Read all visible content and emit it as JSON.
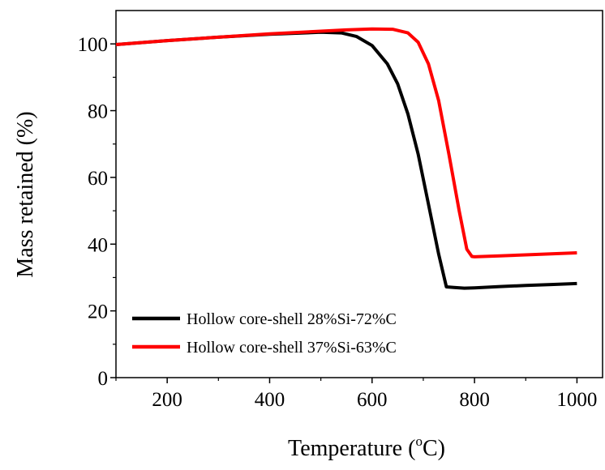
{
  "chart_data": {
    "type": "line",
    "title": "",
    "xlabel": "Temperature (",
    "xlabel_sup": "o",
    "xlabel_unit": "C)",
    "ylabel": "Mass retained (%)",
    "xlim": [
      100,
      1050
    ],
    "ylim": [
      0,
      110
    ],
    "x_ticks": [
      200,
      400,
      600,
      800,
      1000
    ],
    "y_ticks": [
      0,
      20,
      40,
      60,
      80,
      100
    ],
    "grid": false,
    "legend_position": "bottom-left",
    "series": [
      {
        "name": "Hollow core-shell 28%Si-72%C",
        "color": "#000000",
        "x": [
          100,
          200,
          300,
          400,
          500,
          540,
          570,
          600,
          630,
          650,
          670,
          690,
          710,
          730,
          745,
          760,
          780,
          800,
          850,
          900,
          950,
          1000
        ],
        "y": [
          99.8,
          101.0,
          102.0,
          102.9,
          103.5,
          103.3,
          102.2,
          99.5,
          94.0,
          88.0,
          79.0,
          67.0,
          52.0,
          37.0,
          27.2,
          27.0,
          26.8,
          26.9,
          27.3,
          27.6,
          27.9,
          28.2
        ]
      },
      {
        "name": "Hollow core-shell 37%Si-63%C",
        "color": "#ff0000",
        "x": [
          100,
          200,
          300,
          400,
          500,
          550,
          600,
          640,
          670,
          690,
          710,
          730,
          750,
          770,
          785,
          795,
          800,
          850,
          900,
          950,
          1000
        ],
        "y": [
          99.8,
          101.0,
          102.0,
          103.0,
          103.8,
          104.2,
          104.5,
          104.4,
          103.3,
          100.5,
          94.0,
          83.0,
          67.0,
          50.0,
          38.5,
          36.3,
          36.2,
          36.5,
          36.8,
          37.1,
          37.4
        ]
      }
    ]
  }
}
